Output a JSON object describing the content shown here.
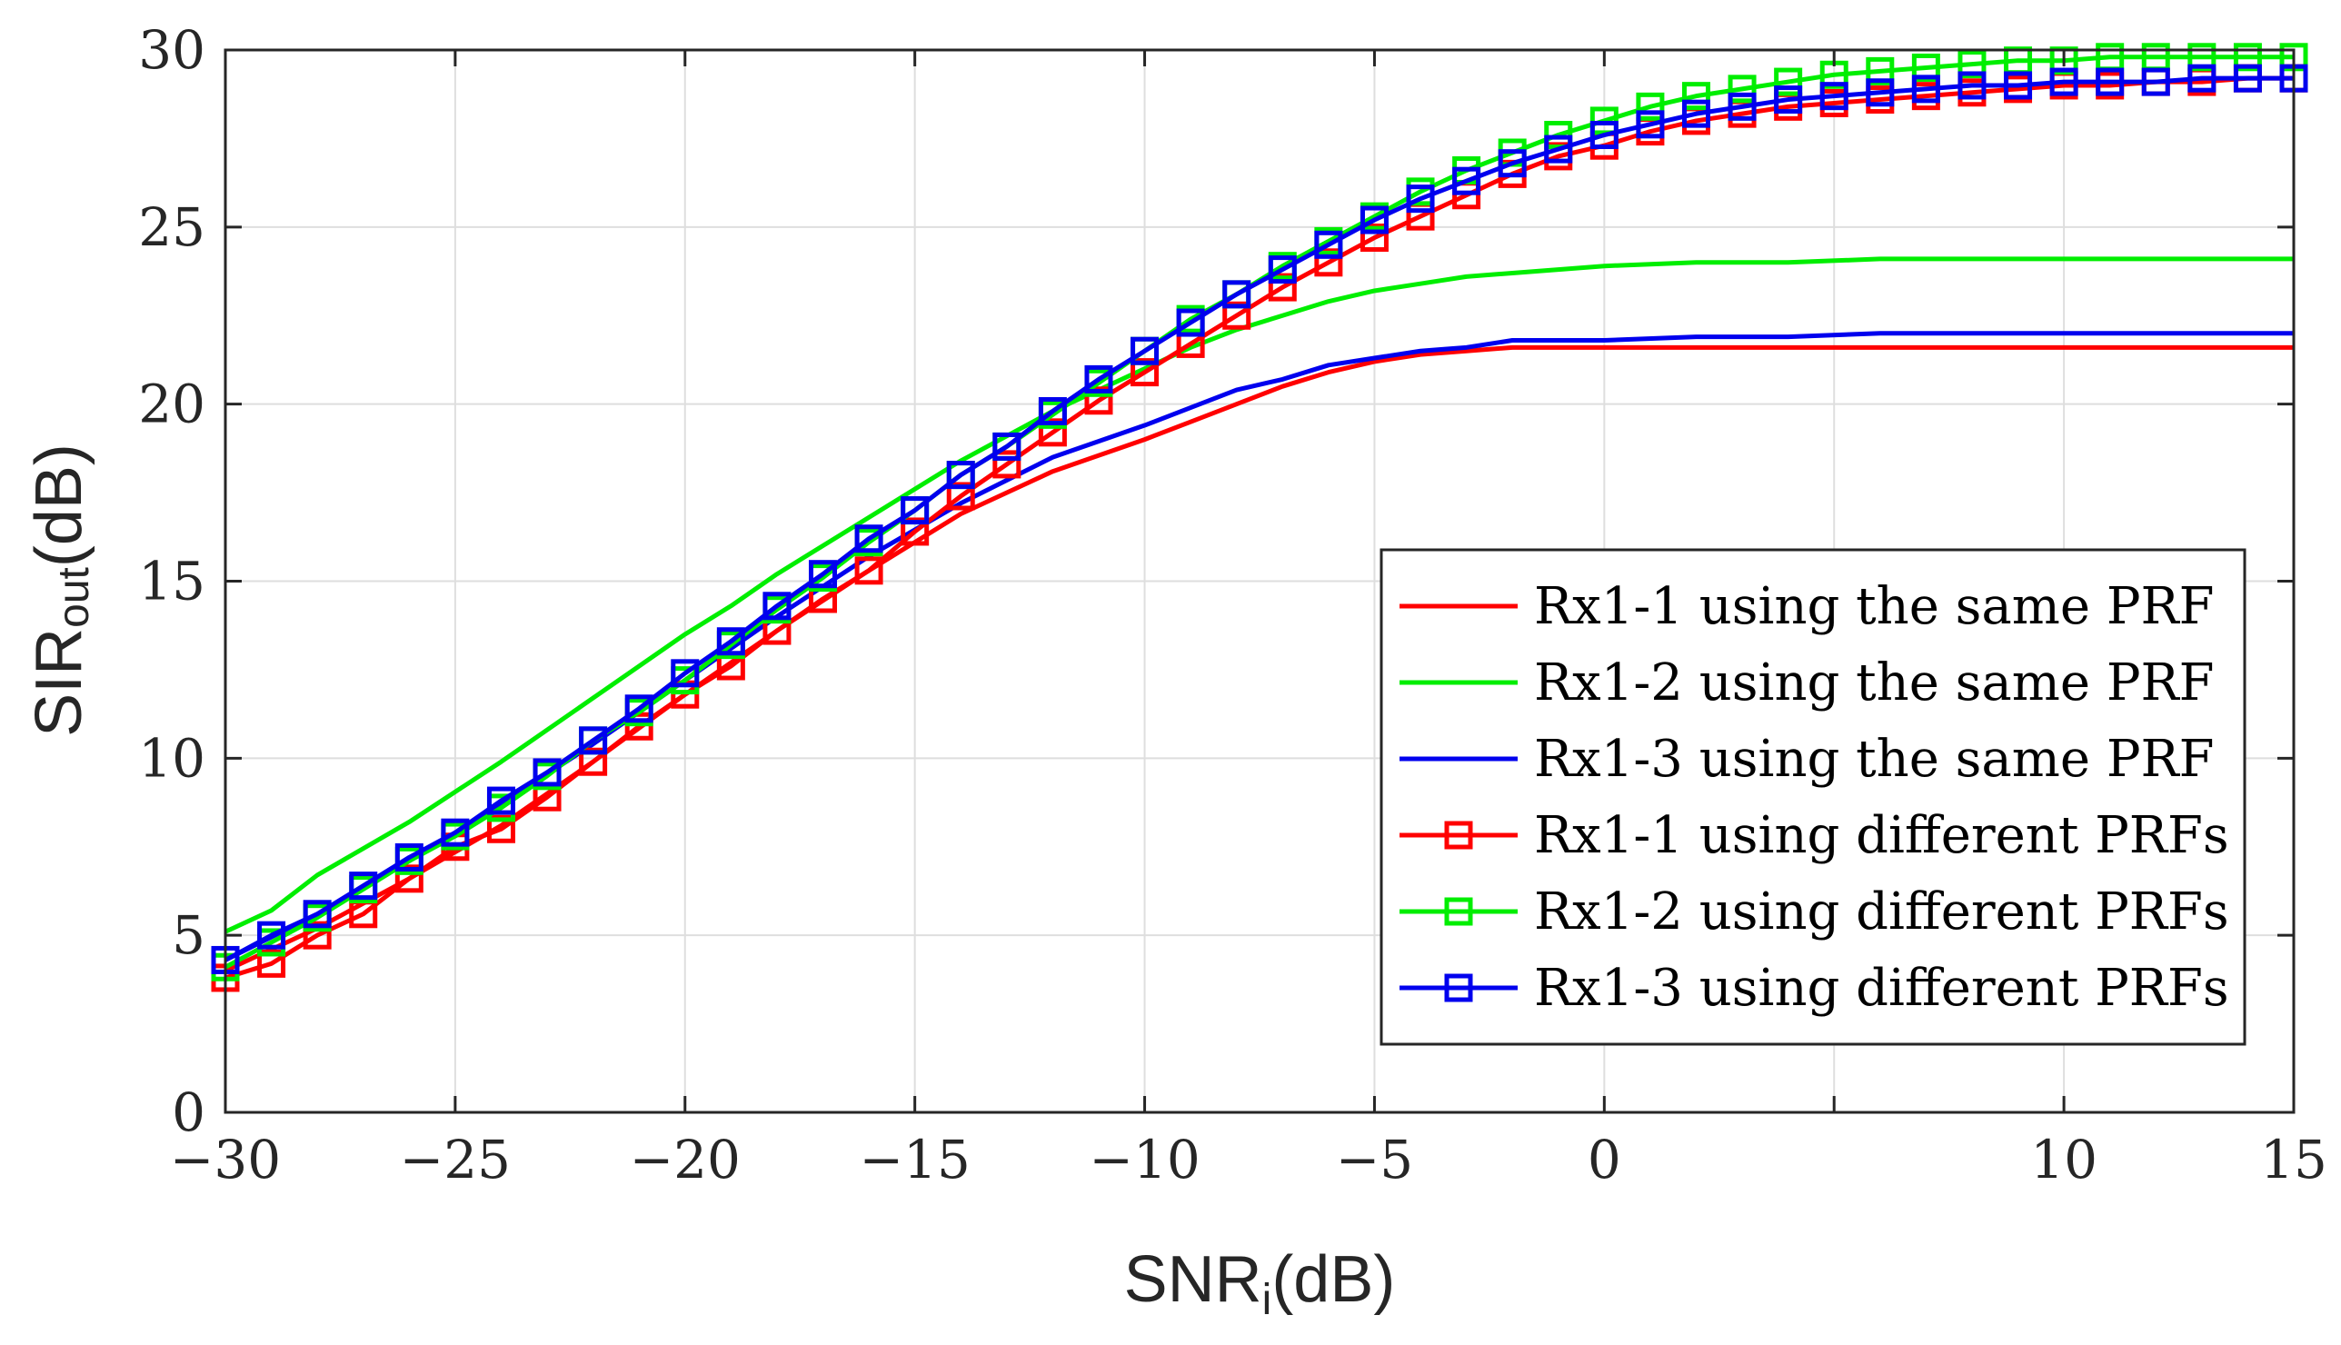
{
  "chart_data": {
    "type": "line",
    "title": "",
    "xlabel": {
      "main": "SNR",
      "sub": "i",
      "unit": "(dB)"
    },
    "ylabel": {
      "main": "SIR",
      "sub": "out",
      "unit": "(dB)"
    },
    "xlim": [
      -30,
      15
    ],
    "ylim": [
      0,
      30
    ],
    "x_ticks": [
      -30,
      -25,
      -20,
      -15,
      -10,
      -5,
      0,
      10,
      15
    ],
    "x_tick_labels": [
      "−30",
      "−25",
      "−20",
      "−15",
      "−10",
      "−5",
      "0",
      "10",
      "15"
    ],
    "y_ticks": [
      0,
      5,
      10,
      15,
      20,
      25,
      30
    ],
    "y_tick_labels": [
      "0",
      "5",
      "10",
      "15",
      "20",
      "25",
      "30"
    ],
    "grid": true,
    "legend_position": "right-center",
    "series": [
      {
        "name": "Rx1-1 using the same PRF",
        "color": "#ff0000",
        "marker": "none",
        "x": [
          -30,
          -28,
          -26,
          -24,
          -22,
          -20,
          -18,
          -16,
          -14,
          -12,
          -10,
          -9,
          -8,
          -7,
          -6,
          -5,
          -4,
          -3,
          -2,
          -1,
          0,
          2,
          4,
          6,
          8,
          10,
          12,
          15
        ],
        "y": [
          4.0,
          5.2,
          6.6,
          8.1,
          9.9,
          11.8,
          13.6,
          15.3,
          16.9,
          18.1,
          19.0,
          19.5,
          20.0,
          20.5,
          20.9,
          21.2,
          21.4,
          21.5,
          21.6,
          21.6,
          21.6,
          21.6,
          21.6,
          21.6,
          21.6,
          21.6,
          21.6,
          21.6
        ]
      },
      {
        "name": "Rx1-2 using the same PRF",
        "color": "#00ee00",
        "marker": "none",
        "x": [
          -30,
          -29,
          -28,
          -26,
          -24,
          -22,
          -20,
          -19,
          -18,
          -16,
          -14,
          -12,
          -10,
          -9,
          -8,
          -7,
          -6,
          -5,
          -4,
          -3,
          -2,
          -1,
          0,
          2,
          4,
          6,
          8,
          10,
          12,
          15
        ],
        "y": [
          5.1,
          5.7,
          6.7,
          8.2,
          9.9,
          11.7,
          13.5,
          14.3,
          15.2,
          16.8,
          18.4,
          19.8,
          21.0,
          21.6,
          22.1,
          22.5,
          22.9,
          23.2,
          23.4,
          23.6,
          23.7,
          23.8,
          23.9,
          24.0,
          24.0,
          24.1,
          24.1,
          24.1,
          24.1,
          24.1
        ]
      },
      {
        "name": "Rx1-3 using the same PRF",
        "color": "#0000ee",
        "marker": "none",
        "x": [
          -30,
          -28,
          -26,
          -24,
          -22,
          -20,
          -18,
          -16,
          -14,
          -12,
          -10,
          -9,
          -8,
          -7,
          -6,
          -5,
          -4,
          -3,
          -2,
          -1,
          0,
          2,
          4,
          6,
          8,
          10,
          12,
          15
        ],
        "y": [
          4.3,
          5.6,
          7.1,
          8.7,
          10.4,
          12.2,
          14.0,
          15.7,
          17.2,
          18.5,
          19.4,
          19.9,
          20.4,
          20.7,
          21.1,
          21.3,
          21.5,
          21.6,
          21.8,
          21.8,
          21.8,
          21.9,
          21.9,
          22.0,
          22.0,
          22.0,
          22.0,
          22.0
        ]
      },
      {
        "name": "Rx1-1 using different PRFs",
        "color": "#ff0000",
        "marker": "square",
        "x": [
          -30,
          -29,
          -28,
          -27,
          -26,
          -25,
          -24,
          -23,
          -22,
          -21,
          -20,
          -19,
          -18,
          -17,
          -16,
          -15,
          -14,
          -13,
          -12,
          -11,
          -10,
          -9,
          -8,
          -7,
          -6,
          -5,
          -4,
          -3,
          -2,
          -1,
          0,
          1,
          2,
          3,
          4,
          5,
          6,
          7,
          8,
          9,
          10,
          11,
          12,
          13,
          14,
          15
        ],
        "y": [
          3.8,
          4.2,
          5.0,
          5.6,
          6.6,
          7.5,
          8.0,
          8.9,
          9.9,
          10.9,
          11.8,
          12.6,
          13.6,
          14.5,
          15.3,
          16.4,
          17.4,
          18.3,
          19.2,
          20.1,
          20.9,
          21.7,
          22.5,
          23.3,
          24.0,
          24.7,
          25.3,
          25.9,
          26.5,
          27.0,
          27.3,
          27.7,
          28.0,
          28.2,
          28.4,
          28.5,
          28.6,
          28.7,
          28.8,
          28.9,
          29.0,
          29.0,
          29.1,
          29.1,
          29.2,
          29.2
        ]
      },
      {
        "name": "Rx1-2 using different PRFs",
        "color": "#00ee00",
        "marker": "square",
        "x": [
          -30,
          -29,
          -28,
          -27,
          -26,
          -25,
          -24,
          -23,
          -22,
          -21,
          -20,
          -19,
          -18,
          -17,
          -16,
          -15,
          -14,
          -13,
          -12,
          -11,
          -10,
          -9,
          -8,
          -7,
          -6,
          -5,
          -4,
          -3,
          -2,
          -1,
          0,
          1,
          2,
          3,
          4,
          5,
          6,
          7,
          8,
          9,
          10,
          11,
          12,
          13,
          14,
          15
        ],
        "y": [
          4.1,
          4.8,
          5.5,
          6.3,
          7.1,
          7.8,
          8.6,
          9.5,
          10.5,
          11.3,
          12.2,
          13.2,
          14.2,
          15.1,
          16.1,
          17.0,
          18.0,
          18.8,
          19.7,
          20.6,
          21.5,
          22.4,
          23.1,
          23.9,
          24.6,
          25.3,
          26.0,
          26.6,
          27.1,
          27.6,
          28.0,
          28.4,
          28.7,
          28.9,
          29.1,
          29.3,
          29.4,
          29.5,
          29.6,
          29.7,
          29.7,
          29.8,
          29.8,
          29.8,
          29.8,
          29.8
        ]
      },
      {
        "name": "Rx1-3 using different PRFs",
        "color": "#0000ee",
        "marker": "square",
        "x": [
          -30,
          -29,
          -28,
          -27,
          -26,
          -25,
          -24,
          -23,
          -22,
          -21,
          -20,
          -19,
          -18,
          -17,
          -16,
          -15,
          -14,
          -13,
          -12,
          -11,
          -10,
          -9,
          -8,
          -7,
          -6,
          -5,
          -4,
          -3,
          -2,
          -1,
          0,
          1,
          2,
          3,
          4,
          5,
          6,
          7,
          8,
          9,
          10,
          11,
          12,
          13,
          14,
          15
        ],
        "y": [
          4.3,
          5.0,
          5.6,
          6.4,
          7.2,
          7.9,
          8.8,
          9.6,
          10.5,
          11.4,
          12.4,
          13.3,
          14.3,
          15.2,
          16.2,
          17.0,
          18.0,
          18.8,
          19.8,
          20.7,
          21.5,
          22.3,
          23.1,
          23.8,
          24.5,
          25.2,
          25.8,
          26.3,
          26.8,
          27.2,
          27.6,
          27.9,
          28.2,
          28.4,
          28.6,
          28.7,
          28.8,
          28.9,
          29.0,
          29.0,
          29.1,
          29.1,
          29.1,
          29.2,
          29.2,
          29.2
        ]
      }
    ]
  }
}
